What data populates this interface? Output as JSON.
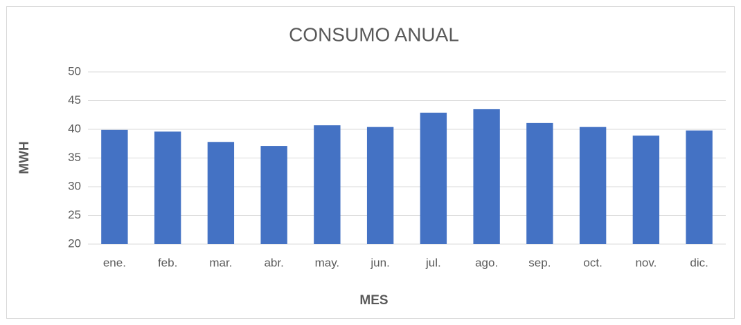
{
  "chart_data": {
    "type": "bar",
    "title": "CONSUMO ANUAL",
    "x_label": "MES",
    "y_label": "MWH",
    "categories": [
      "ene.",
      "feb.",
      "mar.",
      "abr.",
      "may.",
      "jun.",
      "jul.",
      "ago.",
      "sep.",
      "oct.",
      "nov.",
      "dic."
    ],
    "values": [
      39.9,
      39.6,
      37.8,
      37.1,
      40.7,
      40.4,
      42.9,
      43.5,
      41.1,
      40.4,
      38.9,
      39.8
    ],
    "color": "#4472c4",
    "ylim": [
      20,
      50
    ],
    "yticks": [
      20,
      25,
      30,
      35,
      40,
      45,
      50
    ],
    "grid": true
  }
}
